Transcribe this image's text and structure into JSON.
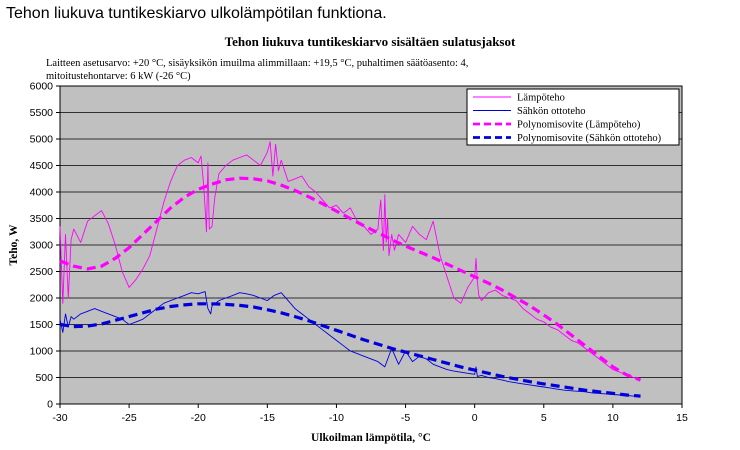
{
  "page": {
    "heading": "Tehon liukuva tuntikeskiarvo ulkolämpötilan funktiona."
  },
  "chart_data": {
    "type": "line",
    "title": "Tehon liukuva tuntikeskiarvo sisältäen sulatusjaksot",
    "subtitle_lines": [
      "Laitteen asetusarvo: +20 °C, sisäyksikön imuilma alimmillaan: +19,5 °C, puhaltimen säätöasento: 4,",
      "mitoitustehontarve: 6 kW (-26 °C)"
    ],
    "xlabel": "Ulkoilman lämpötila, °C",
    "ylabel": "Teho, W",
    "xlim": [
      -30,
      15
    ],
    "ylim": [
      0,
      6000
    ],
    "xticks": [
      -30,
      -25,
      -20,
      -15,
      -10,
      -5,
      0,
      5,
      10,
      15
    ],
    "xtick_labels": [
      "-30",
      "-25",
      "-20",
      "-15",
      "-10",
      "-5",
      "0",
      "5",
      "10",
      "15"
    ],
    "yticks": [
      0,
      500,
      1000,
      1500,
      2000,
      2500,
      3000,
      3500,
      4000,
      4500,
      5000,
      5500,
      6000
    ],
    "ytick_labels": [
      "0",
      "500",
      "1000",
      "1500",
      "2000",
      "2500",
      "3000",
      "3500",
      "4000",
      "4500",
      "5000",
      "5500",
      "6000"
    ],
    "grid": "horizontal",
    "plot_background": "#c0c0c0",
    "legend_position": "top-right",
    "series": [
      {
        "name": "Lämpöteho",
        "color": "#ff00ff",
        "style": "thin",
        "x": [
          -30,
          -29.8,
          -29.6,
          -29.4,
          -29.2,
          -29,
          -28.5,
          -28,
          -27.5,
          -27,
          -26.5,
          -26,
          -25.5,
          -25,
          -24.5,
          -24,
          -23.5,
          -23,
          -22.5,
          -22,
          -21.5,
          -21,
          -20.5,
          -20,
          -19.8,
          -19.6,
          -19.4,
          -19.3,
          -19.2,
          -19,
          -18.8,
          -18.5,
          -18,
          -17.5,
          -17,
          -16.5,
          -16,
          -15.5,
          -15,
          -14.8,
          -14.6,
          -14.4,
          -14.2,
          -14,
          -13.5,
          -13,
          -12.5,
          -12,
          -11.5,
          -11,
          -10.5,
          -10,
          -9.5,
          -9,
          -8.5,
          -8,
          -7.5,
          -7,
          -6.8,
          -6.6,
          -6.5,
          -6.4,
          -6.3,
          -6.2,
          -6,
          -5.8,
          -5.5,
          -5,
          -4.5,
          -4,
          -3.5,
          -3,
          -2.5,
          -2,
          -1.5,
          -1,
          -0.5,
          0,
          0.1,
          0.2,
          0.3,
          0.5,
          1,
          1.5,
          2,
          2.5,
          3,
          3.5,
          4,
          4.5,
          5,
          5.5,
          6,
          6.5,
          7,
          7.5,
          8,
          8.5,
          9,
          9.5,
          10,
          10.5,
          11,
          11.5,
          12
        ],
        "y": [
          3350,
          1900,
          3200,
          2000,
          3100,
          3300,
          3050,
          3450,
          3550,
          3650,
          3400,
          3000,
          2500,
          2200,
          2350,
          2550,
          2800,
          3300,
          3800,
          4200,
          4500,
          4600,
          4650,
          4550,
          4680,
          4100,
          3250,
          4550,
          3300,
          3350,
          3900,
          4350,
          4500,
          4600,
          4650,
          4700,
          4600,
          4500,
          4750,
          4950,
          4300,
          4900,
          4400,
          4600,
          4200,
          4250,
          4300,
          4100,
          4000,
          3850,
          3700,
          3750,
          3600,
          3700,
          3450,
          3350,
          3200,
          3300,
          3850,
          2900,
          3950,
          3050,
          3500,
          2800,
          3200,
          2900,
          3200,
          3050,
          3350,
          3200,
          3100,
          3450,
          2800,
          2400,
          2000,
          1900,
          2200,
          2400,
          2750,
          2300,
          2050,
          1950,
          2100,
          2150,
          2050,
          2000,
          1950,
          1800,
          1700,
          1600,
          1550,
          1450,
          1400,
          1300,
          1200,
          1150,
          1050,
          950,
          850,
          750,
          650,
          600,
          550,
          500,
          450
        ]
      },
      {
        "name": "Sähkön ottoteho",
        "color": "#0000dd",
        "style": "thin",
        "x": [
          -30,
          -29.8,
          -29.6,
          -29.4,
          -29.2,
          -29,
          -28.5,
          -28,
          -27.5,
          -27,
          -26.5,
          -26,
          -25.5,
          -25,
          -24.5,
          -24,
          -23.5,
          -23,
          -22.5,
          -22,
          -21.5,
          -21,
          -20.5,
          -20,
          -19.5,
          -19.3,
          -19.1,
          -19,
          -18.5,
          -18,
          -17.5,
          -17,
          -16.5,
          -16,
          -15.5,
          -15,
          -14.5,
          -14,
          -13.5,
          -13,
          -12.5,
          -12,
          -11.5,
          -11,
          -10.5,
          -10,
          -9.5,
          -9,
          -8.5,
          -8,
          -7.5,
          -7,
          -6.5,
          -6,
          -5.5,
          -5,
          -4.5,
          -4,
          -3.5,
          -3,
          -2.5,
          -2,
          -1.5,
          -1,
          -0.5,
          0,
          0.1,
          0.2,
          0.5,
          1,
          1.5,
          2,
          2.5,
          3,
          3.5,
          4,
          4.5,
          5,
          5.5,
          6,
          6.5,
          7,
          7.5,
          8,
          8.5,
          9,
          9.5,
          10,
          10.5,
          11,
          11.5,
          12
        ],
        "y": [
          1600,
          1350,
          1700,
          1450,
          1650,
          1600,
          1700,
          1750,
          1800,
          1750,
          1700,
          1650,
          1600,
          1500,
          1550,
          1600,
          1700,
          1800,
          1900,
          1950,
          2000,
          2050,
          2100,
          2080,
          2120,
          1800,
          1700,
          1850,
          1950,
          2000,
          2050,
          2100,
          2080,
          2050,
          2000,
          1950,
          2050,
          2100,
          1950,
          1800,
          1700,
          1600,
          1500,
          1400,
          1300,
          1200,
          1100,
          1000,
          950,
          900,
          850,
          800,
          700,
          1050,
          750,
          1000,
          800,
          900,
          850,
          750,
          700,
          650,
          620,
          600,
          580,
          560,
          700,
          520,
          540,
          500,
          480,
          450,
          420,
          400,
          380,
          360,
          340,
          320,
          300,
          280,
          260,
          250,
          240,
          230,
          210,
          200,
          190,
          180,
          170,
          160,
          150,
          145
        ]
      },
      {
        "name": "Polynomisovite (Lämpöteho)",
        "color": "#ff00ff",
        "style": "dashed-thick",
        "x": [
          -30,
          -29,
          -28,
          -27,
          -26,
          -25,
          -24,
          -23,
          -22,
          -21,
          -20,
          -19,
          -18,
          -17,
          -16,
          -15,
          -14,
          -13,
          -12,
          -11,
          -10,
          -9,
          -8,
          -7,
          -6,
          -5,
          -4,
          -3,
          -2,
          -1,
          0,
          1,
          2,
          3,
          4,
          5,
          6,
          7,
          8,
          9,
          10,
          11,
          12
        ],
        "y": [
          2700,
          2600,
          2550,
          2600,
          2750,
          2950,
          3200,
          3450,
          3700,
          3900,
          4050,
          4150,
          4230,
          4260,
          4250,
          4210,
          4130,
          4030,
          3910,
          3780,
          3640,
          3500,
          3360,
          3230,
          3100,
          2980,
          2870,
          2760,
          2640,
          2520,
          2400,
          2280,
          2150,
          2000,
          1850,
          1680,
          1500,
          1300,
          1100,
          900,
          700,
          550,
          450
        ]
      },
      {
        "name": "Polynomisovite (Sähkön ottoteho)",
        "color": "#0000dd",
        "style": "dashed-thick",
        "x": [
          -30,
          -29,
          -28,
          -27,
          -26,
          -25,
          -24,
          -23,
          -22,
          -21,
          -20,
          -19,
          -18,
          -17,
          -16,
          -15,
          -14,
          -13,
          -12,
          -11,
          -10,
          -9,
          -8,
          -7,
          -6,
          -5,
          -4,
          -3,
          -2,
          -1,
          0,
          1,
          2,
          3,
          4,
          5,
          6,
          7,
          8,
          9,
          10,
          11,
          12
        ],
        "y": [
          1500,
          1460,
          1470,
          1510,
          1580,
          1650,
          1720,
          1790,
          1840,
          1870,
          1890,
          1890,
          1880,
          1860,
          1830,
          1780,
          1720,
          1650,
          1570,
          1480,
          1390,
          1300,
          1210,
          1130,
          1050,
          980,
          910,
          840,
          770,
          700,
          640,
          580,
          520,
          470,
          420,
          380,
          340,
          300,
          260,
          230,
          200,
          170,
          150
        ]
      }
    ]
  }
}
